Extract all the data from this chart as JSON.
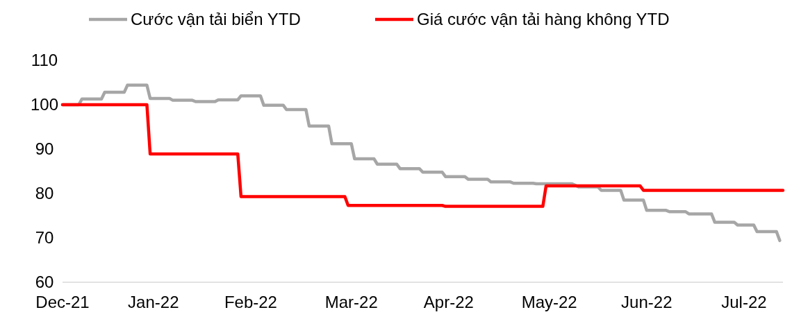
{
  "chart_data": {
    "type": "line",
    "legend": "top",
    "line_style": "solid",
    "marker": "none",
    "grid": false,
    "xlim": [
      "2021-12-31",
      "2022-08-10"
    ],
    "xticks": [
      {
        "value": "2021-12-31",
        "label": "Dec-21"
      },
      {
        "value": "2022-01-28",
        "label": "Jan-22"
      },
      {
        "value": "2022-02-27",
        "label": "Feb-22"
      },
      {
        "value": "2022-03-30",
        "label": "Mar-22"
      },
      {
        "value": "2022-04-29",
        "label": "Apr-22"
      },
      {
        "value": "2022-05-30",
        "label": "May-22"
      },
      {
        "value": "2022-06-29",
        "label": "Jun-22"
      },
      {
        "value": "2022-07-29",
        "label": "Jul-22"
      }
    ],
    "ylim": [
      60,
      110
    ],
    "yticks": [
      60,
      70,
      80,
      90,
      100,
      110
    ],
    "series": [
      {
        "name": "Cước vận tải biển YTD",
        "color": "#a6a6a6",
        "x": [
          "2021-12-31",
          "2022-01-05",
          "2022-01-06",
          "2022-01-12",
          "2022-01-13",
          "2022-01-19",
          "2022-01-20",
          "2022-01-26",
          "2022-01-27",
          "2022-02-02",
          "2022-02-03",
          "2022-02-09",
          "2022-02-10",
          "2022-02-16",
          "2022-02-17",
          "2022-02-23",
          "2022-02-24",
          "2022-03-02",
          "2022-03-03",
          "2022-03-09",
          "2022-03-10",
          "2022-03-16",
          "2022-03-17",
          "2022-03-23",
          "2022-03-24",
          "2022-03-30",
          "2022-03-31",
          "2022-04-06",
          "2022-04-07",
          "2022-04-13",
          "2022-04-14",
          "2022-04-20",
          "2022-04-21",
          "2022-04-27",
          "2022-04-28",
          "2022-05-04",
          "2022-05-05",
          "2022-05-11",
          "2022-05-12",
          "2022-05-18",
          "2022-05-19",
          "2022-05-25",
          "2022-05-26",
          "2022-06-06",
          "2022-06-08",
          "2022-06-14",
          "2022-06-15",
          "2022-06-21",
          "2022-06-22",
          "2022-06-28",
          "2022-06-29",
          "2022-07-05",
          "2022-07-06",
          "2022-07-11",
          "2022-07-12",
          "2022-07-19",
          "2022-07-20",
          "2022-07-26",
          "2022-07-27",
          "2022-08-01",
          "2022-08-02",
          "2022-08-08",
          "2022-08-09"
        ],
        "values": [
          100,
          100,
          101.3,
          101.3,
          102.8,
          102.8,
          104.4,
          104.4,
          101.4,
          101.4,
          101.0,
          101.0,
          100.7,
          100.7,
          101.1,
          101.1,
          102.0,
          102.0,
          99.9,
          99.9,
          98.9,
          98.9,
          95.2,
          95.2,
          91.2,
          91.2,
          87.8,
          87.8,
          86.6,
          86.6,
          85.6,
          85.6,
          84.8,
          84.8,
          83.8,
          83.8,
          83.2,
          83.2,
          82.6,
          82.6,
          82.3,
          82.3,
          82.2,
          82.2,
          81.5,
          81.5,
          80.7,
          80.7,
          78.5,
          78.5,
          76.2,
          76.2,
          75.9,
          75.9,
          75.4,
          75.4,
          73.5,
          73.5,
          72.9,
          72.9,
          71.4,
          71.4,
          69.4
        ]
      },
      {
        "name": "Giá cước vận tải hàng không YTD",
        "color": "#ff0000",
        "x": [
          "2021-12-31",
          "2022-01-26",
          "2022-01-27",
          "2022-02-23",
          "2022-02-24",
          "2022-03-28",
          "2022-03-29",
          "2022-04-27",
          "2022-04-28",
          "2022-05-28",
          "2022-05-29",
          "2022-06-27",
          "2022-06-28",
          "2022-08-10"
        ],
        "values": [
          100,
          100,
          88.9,
          88.9,
          79.3,
          79.3,
          77.3,
          77.3,
          77.1,
          77.1,
          81.7,
          81.7,
          80.7,
          80.7
        ]
      }
    ]
  }
}
